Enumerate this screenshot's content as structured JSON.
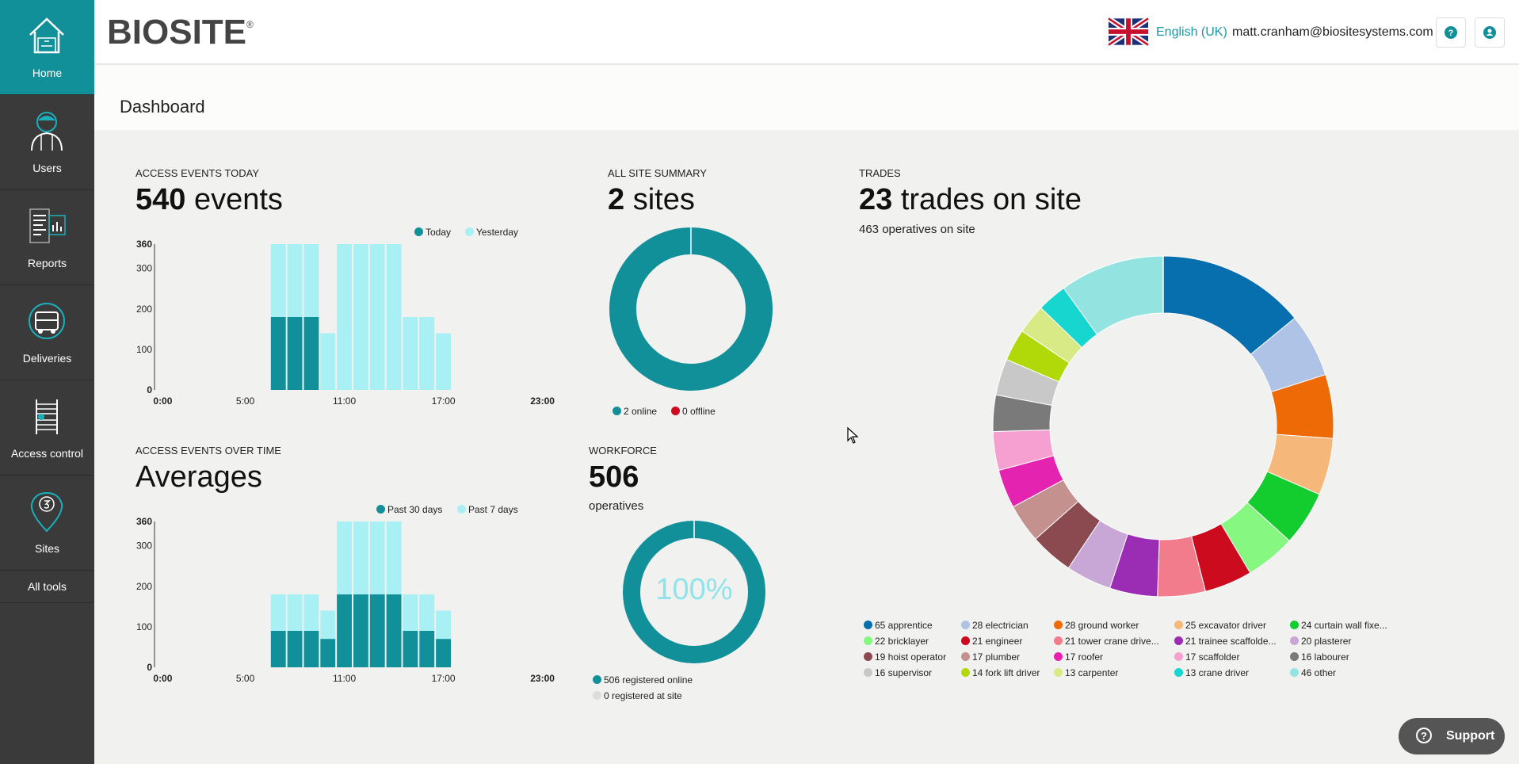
{
  "sidebar": {
    "items": [
      {
        "label": "Home",
        "icon": "home-icon"
      },
      {
        "label": "Users",
        "icon": "user-icon"
      },
      {
        "label": "Reports",
        "icon": "reports-icon"
      },
      {
        "label": "Deliveries",
        "icon": "truck-icon"
      },
      {
        "label": "Access control",
        "icon": "turnstile-icon"
      },
      {
        "label": "Sites",
        "icon": "map-pin-icon"
      }
    ],
    "all_tools": "All tools"
  },
  "header": {
    "logo": "BIOSITE",
    "logo_mark": "®",
    "language": "English (UK)",
    "email": "matt.cranham@biositesystems.com"
  },
  "page": {
    "title": "Dashboard"
  },
  "access_today": {
    "label": "ACCESS EVENTS TODAY",
    "count": "540",
    "unit": "events",
    "legend": [
      "Today",
      "Yesterday"
    ]
  },
  "access_over_time": {
    "label": "ACCESS EVENTS OVER TIME",
    "title": "Averages",
    "legend": [
      "Past 30 days",
      "Past 7 days"
    ]
  },
  "site_summary": {
    "label": "ALL SITE SUMMARY",
    "count": "2",
    "unit": "sites",
    "legend": [
      "2 online",
      "0 offline"
    ]
  },
  "workforce": {
    "label": "WORKFORCE",
    "count": "506",
    "unit": "operatives",
    "percent": "100%",
    "legend": [
      "506 registered online",
      "0 registered at site"
    ]
  },
  "trades": {
    "label": "TRADES",
    "count": "23",
    "unit": "trades on site",
    "subtitle": "463 operatives on site"
  },
  "colors": {
    "accent": "#12909a",
    "teal_light": "#a8f0f4",
    "offline": "#cc0b1f"
  },
  "support": {
    "label": "Support"
  },
  "chart_data": [
    {
      "type": "bar",
      "name_key": "access_today",
      "categories": [
        "0:00",
        "1:00",
        "2:00",
        "3:00",
        "4:00",
        "5:00",
        "6:00",
        "7:00",
        "8:00",
        "9:00",
        "10:00",
        "11:00",
        "12:00",
        "13:00",
        "14:00",
        "15:00",
        "16:00",
        "17:00",
        "18:00",
        "19:00",
        "20:00",
        "21:00",
        "22:00",
        "23:00"
      ],
      "x_tick_labels": [
        "0:00",
        "5:00",
        "11:00",
        "17:00",
        "23:00"
      ],
      "series": [
        {
          "name": "Today",
          "values": [
            0,
            0,
            0,
            0,
            0,
            0,
            0,
            180,
            180,
            180,
            0,
            0,
            0,
            0,
            0,
            0,
            0,
            0,
            0,
            0,
            0,
            0,
            0,
            0
          ]
        },
        {
          "name": "Yesterday",
          "values": [
            0,
            0,
            0,
            0,
            0,
            0,
            0,
            360,
            360,
            360,
            140,
            360,
            360,
            360,
            360,
            180,
            180,
            140,
            0,
            0,
            0,
            0,
            0,
            0
          ]
        }
      ],
      "y_ticks": [
        0,
        100,
        200,
        300,
        360
      ],
      "ylim": [
        0,
        360
      ]
    },
    {
      "type": "bar",
      "name_key": "access_over_time",
      "categories": [
        "0:00",
        "1:00",
        "2:00",
        "3:00",
        "4:00",
        "5:00",
        "6:00",
        "7:00",
        "8:00",
        "9:00",
        "10:00",
        "11:00",
        "12:00",
        "13:00",
        "14:00",
        "15:00",
        "16:00",
        "17:00",
        "18:00",
        "19:00",
        "20:00",
        "21:00",
        "22:00",
        "23:00"
      ],
      "x_tick_labels": [
        "0:00",
        "5:00",
        "11:00",
        "17:00",
        "23:00"
      ],
      "series": [
        {
          "name": "Past 30 days",
          "values": [
            0,
            0,
            0,
            0,
            0,
            0,
            0,
            90,
            90,
            90,
            70,
            180,
            180,
            180,
            180,
            90,
            90,
            70,
            0,
            0,
            0,
            0,
            0,
            0
          ]
        },
        {
          "name": "Past 7 days",
          "values": [
            0,
            0,
            0,
            0,
            0,
            0,
            0,
            180,
            180,
            180,
            140,
            360,
            360,
            360,
            360,
            180,
            180,
            140,
            0,
            0,
            0,
            0,
            0,
            0
          ]
        }
      ],
      "y_ticks": [
        0,
        100,
        200,
        300,
        360
      ],
      "ylim": [
        0,
        360
      ]
    },
    {
      "type": "pie",
      "name_key": "site_summary",
      "categories": [
        "online",
        "offline"
      ],
      "values": [
        2,
        0
      ],
      "colors": [
        "#12909a",
        "#cc0b1f"
      ]
    },
    {
      "type": "pie",
      "name_key": "workforce",
      "categories": [
        "registered online",
        "registered at site"
      ],
      "values": [
        506,
        0
      ],
      "colors": [
        "#12909a",
        "#dddddd"
      ]
    },
    {
      "type": "pie",
      "name_key": "trades",
      "categories": [
        "apprentice",
        "electrician",
        "ground worker",
        "excavator driver",
        "curtain wall fixe...",
        "bricklayer",
        "engineer",
        "tower crane drive...",
        "trainee scaffolde...",
        "plasterer",
        "hoist operator",
        "plumber",
        "roofer",
        "scaffolder",
        "labourer",
        "supervisor",
        "fork lift driver",
        "carpenter",
        "crane driver",
        "other"
      ],
      "values": [
        65,
        28,
        28,
        25,
        24,
        22,
        21,
        21,
        21,
        20,
        19,
        17,
        17,
        17,
        16,
        16,
        14,
        13,
        13,
        46
      ],
      "labels": [
        "65 apprentice",
        "28 electrician",
        "28 ground worker",
        "25 excavator driver",
        "24 curtain wall fixe...",
        "22 bricklayer",
        "21 engineer",
        "21 tower crane drive...",
        "21 trainee scaffolde...",
        "20 plasterer",
        "19 hoist operator",
        "17 plumber",
        "17 roofer",
        "17 scaffolder",
        "16 labourer",
        "16 supervisor",
        "14 fork lift driver",
        "13 carpenter",
        "13 crane driver",
        "46 other"
      ],
      "colors": [
        "#086fae",
        "#aec3e5",
        "#ed6a07",
        "#f5b77a",
        "#13cc2e",
        "#86f780",
        "#cc0b1f",
        "#f27c8c",
        "#9b2db5",
        "#c8a6d6",
        "#8b4a4f",
        "#c5918f",
        "#e424b0",
        "#f5a0d0",
        "#7a7a7a",
        "#c8c8c8",
        "#b1d90a",
        "#d7ea86",
        "#16d6cf",
        "#93e3e0"
      ]
    }
  ]
}
